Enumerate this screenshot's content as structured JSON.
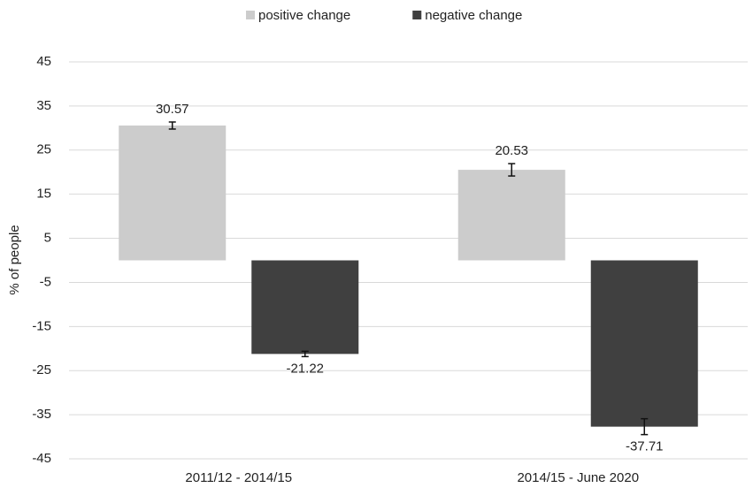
{
  "chart_data": {
    "type": "bar",
    "y_label": "% of people",
    "categories": [
      "2011/12 - 2014/15",
      "2014/15 - June 2020"
    ],
    "series": [
      {
        "name": "positive change",
        "color": "#cccccc",
        "values": [
          30.57,
          20.53
        ],
        "errors": [
          0.8,
          1.4
        ]
      },
      {
        "name": "negative change",
        "color": "#404040",
        "values": [
          -21.22,
          -37.71
        ],
        "errors": [
          0.6,
          1.8
        ]
      }
    ],
    "ylim": [
      -45,
      45
    ],
    "yticks": [
      -45,
      -35,
      -25,
      -15,
      -5,
      5,
      15,
      25,
      35,
      45
    ],
    "grid": true,
    "legend": "top"
  }
}
